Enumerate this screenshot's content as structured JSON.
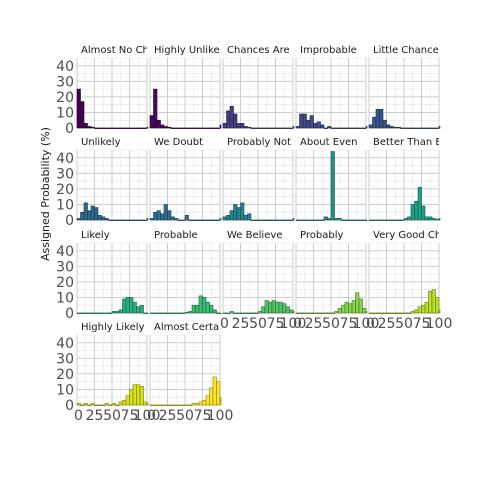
{
  "chart_data": {
    "type": "bar",
    "ylabel": "Assigned Probability (%)",
    "xlabel": "",
    "xlim": [
      0,
      100
    ],
    "ylim": [
      0,
      45
    ],
    "yticks": [
      "0",
      "10",
      "20",
      "30",
      "40"
    ],
    "xticks": [
      "0",
      "25",
      "50",
      "75",
      "100"
    ],
    "bin_width": 5,
    "bin_starts": [
      0,
      5,
      10,
      15,
      20,
      25,
      30,
      35,
      40,
      45,
      50,
      55,
      60,
      65,
      70,
      75,
      80,
      85,
      90,
      95,
      100
    ],
    "grid": true,
    "panels": [
      {
        "name": "Almost No Ch",
        "color": "#440154",
        "values": [
          25,
          17,
          3,
          1,
          0.5,
          0,
          0,
          0,
          0,
          0,
          0,
          0,
          0,
          0,
          0,
          0,
          0,
          0,
          0,
          0,
          0.5
        ]
      },
      {
        "name": "Highly Unlikely",
        "color": "#46085c",
        "values": [
          8,
          25,
          5,
          2,
          1,
          0.5,
          0,
          0,
          0,
          0,
          0,
          0,
          0,
          0,
          0,
          0,
          0,
          0,
          0,
          0,
          2
        ]
      },
      {
        "name": "Chances Are",
        "color": "#433e85",
        "values": [
          3,
          11,
          14,
          9,
          3,
          3,
          1,
          0.5,
          0,
          0,
          0,
          0,
          0,
          0,
          0,
          0,
          0,
          0,
          0,
          0,
          1
        ]
      },
      {
        "name": "Improbable",
        "color": "#3e4a89",
        "values": [
          1,
          9,
          9,
          5,
          8,
          3,
          4,
          2,
          0,
          1,
          0,
          0,
          0,
          0,
          0,
          0,
          0,
          0,
          0,
          0,
          1
        ]
      },
      {
        "name": "Little Chance",
        "color": "#3a548c",
        "values": [
          2,
          7,
          12,
          12,
          5,
          2,
          1,
          0.5,
          0.5,
          0,
          0,
          0,
          0,
          0,
          0,
          0,
          0,
          0,
          0,
          0,
          1
        ]
      },
      {
        "name": "Unlikely",
        "color": "#31688e",
        "values": [
          1,
          5,
          11,
          6,
          9,
          8,
          3,
          2,
          1,
          0,
          0,
          0,
          0,
          0,
          0,
          0,
          0,
          0,
          0,
          0,
          1
        ]
      },
      {
        "name": "We Doubt",
        "color": "#2e6f8e",
        "values": [
          1,
          5,
          6,
          4,
          10,
          6,
          2,
          1,
          0,
          0,
          3,
          0,
          0,
          0,
          0,
          0,
          0,
          0,
          0,
          0,
          1
        ]
      },
      {
        "name": "Probably Not",
        "color": "#25838e",
        "values": [
          2,
          3,
          6,
          10,
          8,
          11,
          3,
          4,
          0,
          0,
          0,
          0,
          0,
          0,
          0,
          0,
          0,
          0,
          0,
          0,
          1
        ]
      },
      {
        "name": "About Even",
        "color": "#21918c",
        "values": [
          0,
          0,
          0,
          0,
          0,
          0,
          0,
          0,
          2,
          1,
          44,
          1,
          1,
          0,
          0,
          0,
          0,
          0,
          0,
          0,
          0
        ]
      },
      {
        "name": "Better Than Ev",
        "color": "#1fa187",
        "values": [
          0,
          0,
          0,
          0,
          0,
          0,
          0,
          0,
          0,
          0,
          1,
          2,
          10,
          12,
          21,
          9,
          2,
          2,
          1,
          0.5,
          1
        ]
      },
      {
        "name": "Likely",
        "color": "#29af7f",
        "values": [
          0,
          0,
          0,
          0,
          0,
          0,
          0,
          0,
          0,
          0,
          1,
          1,
          2,
          9,
          10,
          10,
          7,
          4,
          5,
          0,
          0
        ]
      },
      {
        "name": "Probable",
        "color": "#3bbb75",
        "values": [
          0,
          0,
          0,
          0,
          0,
          0,
          0,
          0,
          0,
          0,
          0.5,
          1,
          5,
          5,
          11,
          10,
          7,
          5,
          2,
          0,
          0
        ]
      },
      {
        "name": "We Believe",
        "color": "#52c569",
        "values": [
          0,
          0,
          1,
          0,
          0,
          0,
          0,
          0,
          0,
          0,
          1,
          4,
          8,
          7,
          8,
          7,
          7,
          6,
          4,
          2,
          1
        ]
      },
      {
        "name": "Probably",
        "color": "#86d549",
        "values": [
          0,
          0,
          0,
          0,
          0,
          0,
          0,
          0,
          0,
          0,
          0,
          1,
          3,
          5,
          7,
          6,
          8,
          13,
          9,
          3,
          1
        ]
      },
      {
        "name": "Very Good Ch",
        "color": "#b8de29",
        "values": [
          0,
          0,
          0,
          0,
          0,
          0,
          0,
          0,
          0,
          0,
          0,
          0,
          1,
          2,
          4,
          5,
          7,
          14,
          15,
          10,
          2
        ]
      },
      {
        "name": "Highly Likely",
        "color": "#d8e219",
        "values": [
          1,
          0,
          1,
          0,
          1,
          0,
          0,
          0,
          1,
          0,
          1,
          0,
          2,
          3,
          6,
          10,
          13,
          13,
          12,
          2,
          1
        ]
      },
      {
        "name": "Almost Certair",
        "color": "#fde725",
        "values": [
          0,
          0,
          0,
          0,
          0,
          0,
          0,
          0,
          0,
          0,
          0,
          0,
          1,
          1,
          2,
          3,
          6,
          11,
          18,
          15,
          5
        ]
      }
    ]
  }
}
